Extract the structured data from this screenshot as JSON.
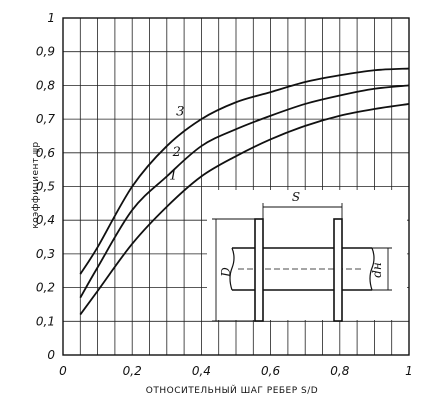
{
  "chart_data": {
    "type": "line",
    "xlabel": "ОТНОСИТЕЛЬНЫЙ ШАГ РЕБЕР  S/D",
    "ylabel": "коэффициент  ψp",
    "xlim": [
      0,
      1
    ],
    "ylim": [
      0,
      1
    ],
    "x_ticks": [
      "0",
      "0,2",
      "0,4",
      "0,6",
      "0,8",
      "1"
    ],
    "y_ticks": [
      "0",
      "0,1",
      "0,2",
      "0,3",
      "0,4",
      "0,5",
      "0,6",
      "0,7",
      "0,8",
      "0,9",
      "1"
    ],
    "grid": true,
    "series": [
      {
        "name": "1",
        "x": [
          0.05,
          0.1,
          0.2,
          0.3,
          0.4,
          0.5,
          0.6,
          0.7,
          0.8,
          0.9,
          1.0
        ],
        "values": [
          0.12,
          0.19,
          0.33,
          0.44,
          0.53,
          0.59,
          0.64,
          0.68,
          0.71,
          0.73,
          0.745
        ]
      },
      {
        "name": "2",
        "x": [
          0.05,
          0.1,
          0.2,
          0.3,
          0.4,
          0.5,
          0.6,
          0.7,
          0.8,
          0.9,
          1.0
        ],
        "values": [
          0.17,
          0.26,
          0.43,
          0.53,
          0.62,
          0.67,
          0.71,
          0.745,
          0.77,
          0.79,
          0.8
        ]
      },
      {
        "name": "3",
        "x": [
          0.05,
          0.1,
          0.2,
          0.3,
          0.4,
          0.5,
          0.6,
          0.7,
          0.8,
          0.9,
          1.0
        ],
        "values": [
          0.24,
          0.32,
          0.5,
          0.62,
          0.7,
          0.75,
          0.78,
          0.81,
          0.83,
          0.845,
          0.85
        ]
      }
    ],
    "curve_labels": [
      "1",
      "2",
      "3"
    ]
  },
  "inset": {
    "spacing_label": "S",
    "diameter_label": "D",
    "hub_diameter_label": "dн"
  }
}
